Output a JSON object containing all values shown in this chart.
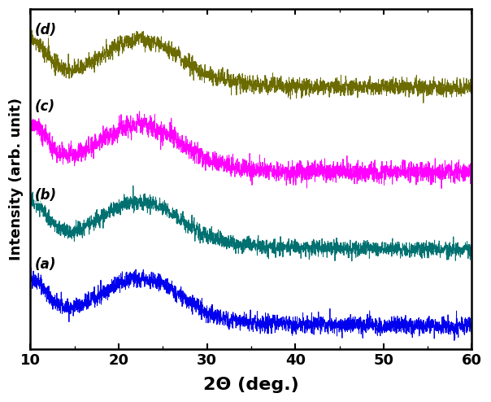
{
  "xlabel": "2Θ (deg.)",
  "ylabel": "Intensity (arb. unit)",
  "xlim": [
    10,
    60
  ],
  "x_ticks": [
    10,
    20,
    30,
    40,
    50,
    60
  ],
  "colors": {
    "a": "#0000EE",
    "b": "#007070",
    "c": "#FF00FF",
    "d": "#6B6B00"
  },
  "labels": [
    "(a)",
    "(b)",
    "(c)",
    "(d)"
  ],
  "offsets": [
    0.0,
    0.18,
    0.36,
    0.56
  ],
  "background_color": "#ffffff",
  "figsize": [
    6.04,
    4.94
  ],
  "dpi": 100
}
